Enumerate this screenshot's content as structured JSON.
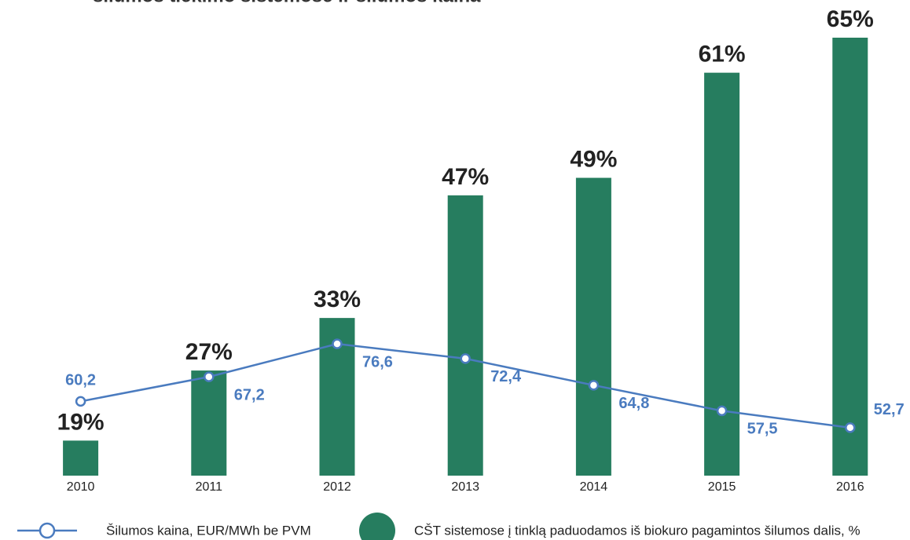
{
  "chart_data": {
    "type": "bar-line",
    "title": "šilumos tiekimo sistemose ir šilumos kaina",
    "categories": [
      "2010",
      "2011",
      "2012",
      "2013",
      "2014",
      "2015",
      "2016"
    ],
    "ylim": [
      15,
      65
    ],
    "y2lim": [
      39,
      164
    ],
    "series": [
      {
        "name": "CŠT sistemose į tinklą paduodamos iš biokuro pagamintos šilumos dalis, %",
        "type": "bar",
        "color": "#267d5f",
        "values": [
          19,
          27,
          33,
          47,
          49,
          61,
          65
        ],
        "value_labels": [
          "19%",
          "27%",
          "33%",
          "47%",
          "49%",
          "61%",
          "65%"
        ]
      },
      {
        "name": "Šilumos kaina, EUR/MWh be PVM",
        "type": "line",
        "axis": "y2",
        "color": "#4a7bbf",
        "values": [
          60.2,
          67.2,
          76.6,
          72.4,
          64.8,
          57.5,
          52.7
        ],
        "value_labels": [
          "60,2",
          "67,2",
          "76,6",
          "72,4",
          "64,8",
          "57,5",
          "52,7"
        ]
      }
    ]
  }
}
